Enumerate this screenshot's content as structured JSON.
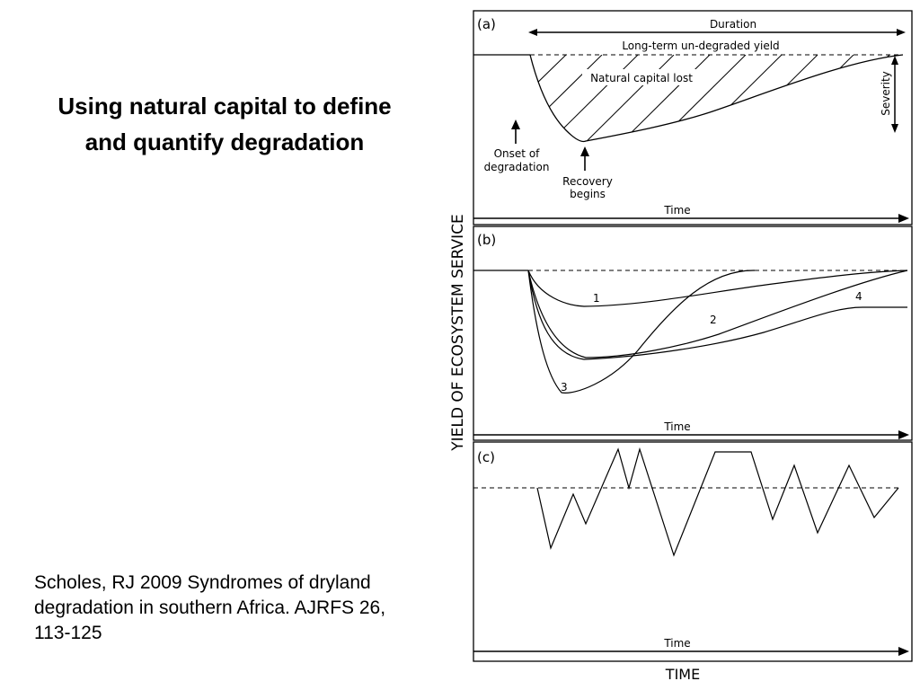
{
  "slide": {
    "title": "Using natural capital to define and quantify degradation",
    "citation": "Scholes, RJ 2009 Syndromes of dryland degradation in southern Africa.  AJRFS 26, 113-125"
  },
  "figure": {
    "y_axis_label": "YIELD OF ECOSYSTEM SERVICE",
    "x_axis_label": "TIME",
    "panel_a": {
      "tag": "(a)",
      "duration": "Duration",
      "baseline": "Long-term un-degraded yield",
      "lost": "Natural capital lost",
      "severity": "Severity",
      "onset_line1": "Onset of",
      "onset_line2": "degradation",
      "recovery_line1": "Recovery",
      "recovery_line2": "begins",
      "time": "Time"
    },
    "panel_b": {
      "tag": "(b)",
      "curve_1": "1",
      "curve_2": "2",
      "curve_3": "3",
      "curve_4": "4",
      "time": "Time"
    },
    "panel_c": {
      "tag": "(c)",
      "time": "Time"
    }
  }
}
